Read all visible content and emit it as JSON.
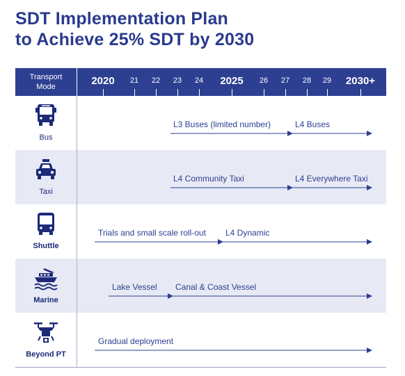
{
  "title": {
    "line1": "SDT Implementation Plan",
    "line2": "to Achieve 25% SDT by 2030"
  },
  "header": {
    "mode_label_line1": "Transport",
    "mode_label_line2": "Mode",
    "years": [
      "2020",
      "21",
      "22",
      "23",
      "24",
      "2025",
      "26",
      "27",
      "28",
      "29",
      "2030+"
    ]
  },
  "rows": [
    {
      "mode": "Bus",
      "icon": "bus-icon",
      "phases": [
        {
          "label": "L3 Buses (limited number)",
          "start": "23",
          "end": "27"
        },
        {
          "label": "L4 Buses",
          "start": "27",
          "end": "2030+"
        }
      ]
    },
    {
      "mode": "Taxi",
      "icon": "taxi-icon",
      "phases": [
        {
          "label": "L4 Community Taxi",
          "start": "23",
          "end": "27"
        },
        {
          "label": "L4 Everywhere Taxi",
          "start": "27",
          "end": "2030+"
        }
      ]
    },
    {
      "mode": "Shuttle",
      "icon": "shuttle-icon",
      "phases": [
        {
          "label": "Trials and small scale roll-out",
          "start": "2020",
          "end": "2025"
        },
        {
          "label": "L4 Dynamic",
          "start": "2025",
          "end": "2030+"
        }
      ]
    },
    {
      "mode": "Marine",
      "icon": "ship-icon",
      "phases": [
        {
          "label": "Lake Vessel",
          "start": "2020",
          "end": "23"
        },
        {
          "label": "Canal & Coast Vessel",
          "start": "23",
          "end": "2030+"
        }
      ]
    },
    {
      "mode": "Beyond PT",
      "icon": "drone-icon",
      "phases": [
        {
          "label": "Gradual deployment",
          "start": "2020",
          "end": "2030+"
        }
      ]
    }
  ],
  "colors": {
    "primary": "#2d3f91",
    "shade": "#e7e9f4"
  }
}
